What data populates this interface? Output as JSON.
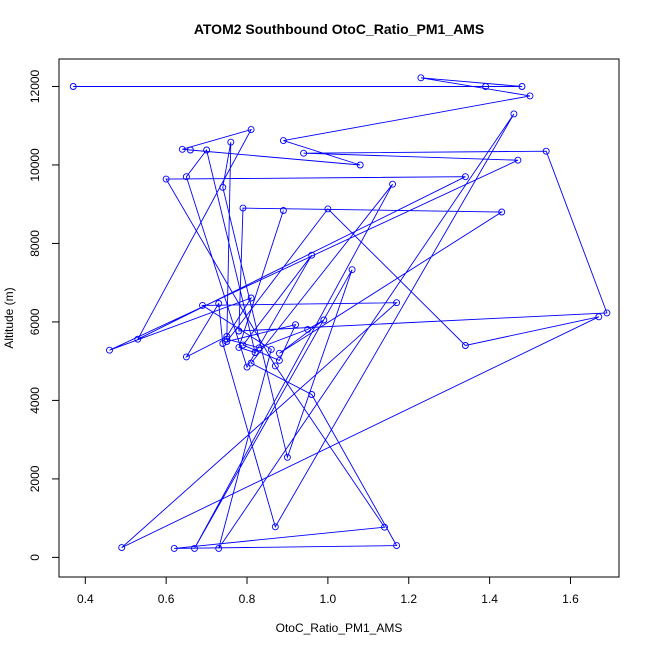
{
  "chart_data": {
    "type": "line",
    "title": "ATOM2 Southbound OtoC_Ratio_PM1_AMS",
    "xlabel": "OtoC_Ratio_PM1_AMS",
    "ylabel": "Altitude (m)",
    "xlim": [
      0.335,
      1.72
    ],
    "ylim": [
      -500,
      12700
    ],
    "x_ticks": [
      0.4,
      0.6,
      0.8,
      1.0,
      1.2,
      1.4,
      1.6
    ],
    "x_tick_labels": [
      "0.4",
      "0.6",
      "0.8",
      "1.0",
      "1.2",
      "1.4",
      "1.6"
    ],
    "y_ticks": [
      0,
      2000,
      4000,
      6000,
      8000,
      10000,
      12000
    ],
    "y_tick_labels": [
      "0",
      "2000",
      "4000",
      "6000",
      "8000",
      "10000",
      "12000"
    ],
    "grid": false,
    "legend": "none",
    "line_color": "#0000ff",
    "marker": "open-circle",
    "series": [
      {
        "x": [
          0.37,
          1.39,
          1.48,
          1.23,
          1.5,
          0.89,
          1.08,
          0.66,
          0.64,
          0.81,
          0.53,
          1.34,
          0.6,
          0.87,
          1.14,
          0.62,
          1.17,
          0.96,
          0.81,
          1.16,
          0.67,
          1.06,
          0.9,
          0.74,
          0.76,
          0.75,
          0.83,
          0.95,
          0.99,
          0.88,
          1.43,
          0.79,
          0.78,
          1.69,
          1.54,
          0.94,
          1.47,
          0.46,
          0.81,
          0.75,
          0.65,
          0.73,
          0.74,
          0.87,
          1.46,
          0.73,
          0.86,
          0.69,
          1.17,
          0.49,
          1.67,
          1.34,
          1.0,
          0.75,
          0.92,
          0.88,
          0.79,
          0.96,
          0.8,
          0.65,
          0.7,
          0.82,
          0.78,
          0.89
        ],
        "y": [
          12000,
          12000,
          12000,
          12220,
          11760,
          10620,
          10000,
          10380,
          10400,
          10900,
          5560,
          9700,
          9640,
          4880,
          770,
          230,
          300,
          4150,
          4950,
          9510,
          230,
          7330,
          2550,
          9430,
          10580,
          5560,
          5340,
          5810,
          6050,
          5200,
          8800,
          8900,
          5770,
          6230,
          10350,
          10300,
          10120,
          5280,
          6610,
          5630,
          5110,
          6470,
          5450,
          780,
          11300,
          230,
          5300,
          6420,
          6490,
          250,
          6130,
          5400,
          8880,
          5500,
          5930,
          5020,
          5410,
          7700,
          4850,
          9700,
          10380,
          5220,
          5350,
          8840
        ]
      }
    ]
  }
}
